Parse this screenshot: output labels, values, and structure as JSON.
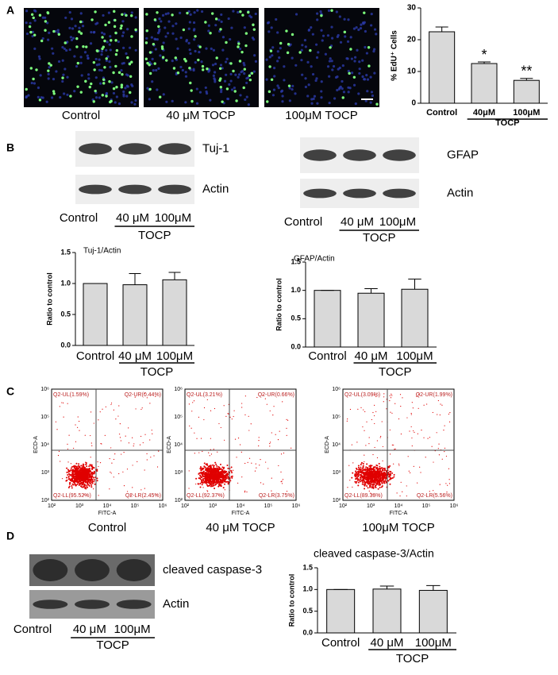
{
  "panel_labels": [
    "A",
    "B",
    "C",
    "D"
  ],
  "chart_data": [
    {
      "type": "bar",
      "y_label": "% EdU⁺ Cells",
      "categories": [
        "Control",
        "40μM",
        "100μM"
      ],
      "group_label": "TOCP",
      "values": [
        22.5,
        12.5,
        7.2
      ],
      "errors": [
        1.5,
        0.5,
        0.6
      ],
      "value_labels": [
        null,
        "*",
        "**"
      ],
      "ylim": [
        0,
        30
      ],
      "yticks": [
        0,
        10,
        20,
        30
      ],
      "color": "#d9d9d9"
    },
    {
      "type": "bar",
      "title": "Tuj-1/Actin",
      "y_label": "Ratio to control",
      "categories": [
        "Control",
        "40 μM",
        "100μM"
      ],
      "group_label": "TOCP",
      "values": [
        1.0,
        0.98,
        1.06
      ],
      "errors": [
        0,
        0.18,
        0.12
      ],
      "ylim": [
        0,
        1.5
      ],
      "yticks": [
        {
          "value": 0,
          "label": "0.0"
        },
        0.5,
        {
          "value": 1,
          "label": "1.0"
        },
        1.5
      ],
      "color": "#d9d9d9"
    },
    {
      "type": "bar",
      "title": "GFAP/Actin",
      "y_label": "Ratio to control",
      "categories": [
        "Control",
        "40 μM",
        "100μM"
      ],
      "group_label": "TOCP",
      "values": [
        1.0,
        0.95,
        1.02
      ],
      "errors": [
        0,
        0.08,
        0.18
      ],
      "ylim": [
        0,
        1.5
      ],
      "yticks": [
        {
          "value": 0,
          "label": "0.0"
        },
        0.5,
        {
          "value": 1,
          "label": "1.0"
        },
        1.5
      ],
      "color": "#d9d9d9"
    },
    {
      "type": "bar",
      "title": "cleaved caspase-3/Actin",
      "y_label": "Ratio to control",
      "categories": [
        "Control",
        "40 μM",
        "100μM"
      ],
      "group_label": "TOCP",
      "values": [
        1.0,
        1.01,
        0.98
      ],
      "errors": [
        0,
        0.07,
        0.11
      ],
      "ylim": [
        0,
        1.5
      ],
      "yticks": [
        {
          "value": 0,
          "label": "0.0"
        },
        0.5,
        {
          "value": 1,
          "label": "1.0"
        },
        1.5
      ],
      "color": "#d9d9d9"
    }
  ],
  "images": {
    "captions": [
      "Control",
      "40 μM TOCP",
      "100μM TOCP"
    ]
  },
  "blots": [
    {
      "rows": [
        "Tuj-1",
        "Actin"
      ],
      "lanes": [
        "Control",
        "40 μM",
        "100μM"
      ],
      "group_label": "TOCP"
    },
    {
      "rows": [
        "GFAP",
        "Actin"
      ],
      "lanes": [
        "Control",
        "40 μM",
        "100μM"
      ],
      "group_label": "TOCP"
    },
    {
      "rows": [
        "cleaved caspase-3",
        "Actin"
      ],
      "lanes": [
        "Control",
        "40 μM",
        "100μM"
      ],
      "group_label": "TOCP"
    }
  ],
  "flow_cytometry": {
    "x_label": "FITC-A",
    "y_label": "ECD-A",
    "ticks": [
      "10²",
      "10³",
      "10⁴",
      "10⁵",
      "10⁶"
    ],
    "plots": [
      {
        "caption": "Control",
        "quadrants": [
          "Q2-UL(1.59%)",
          "Q2-UR(0.44%)",
          "Q2-LL(95.52%)",
          "Q2-LR(2.45%)"
        ]
      },
      {
        "caption": "40 μM TOCP",
        "quadrants": [
          "Q2-UL(3.21%)",
          "Q2-UR(0.66%)",
          "Q2-LL(92.37%)",
          "Q2-LR(3.75%)"
        ]
      },
      {
        "caption": "100μM TOCP",
        "quadrants": [
          "Q2-UL(3.09%)",
          "Q2-UR(1.99%)",
          "Q2-LL(89.36%)",
          "Q2-LR(5.56%)"
        ]
      }
    ]
  }
}
